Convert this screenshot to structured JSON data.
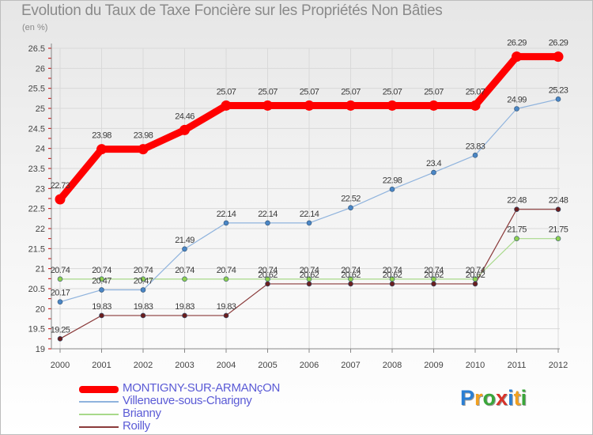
{
  "title": "Evolution du Taux de Taxe Foncière sur les Propriétés Non Bâties",
  "unit_label": "(en %)",
  "logo": {
    "letters": [
      "P",
      "r",
      "o",
      "x",
      "i",
      "t",
      "i"
    ],
    "colors": [
      "#2a7fd4",
      "#f2a01f",
      "#3aa63a",
      "#d8322a",
      "#2a7fd4",
      "#f2a01f",
      "#3aa63a"
    ]
  },
  "chart_data": {
    "type": "line",
    "title": "Evolution du Taux de Taxe Foncière sur les Propriétés Non Bâties",
    "ylabel": "(en %)",
    "xlabel": "",
    "ylim": [
      19,
      26.5
    ],
    "yticks": [
      "19",
      "19.5",
      "20",
      "20.5",
      "21",
      "21.5",
      "22",
      "22.5",
      "23",
      "23.5",
      "24",
      "24.5",
      "25",
      "25.5",
      "26",
      "26.5"
    ],
    "categories": [
      "2000",
      "2001",
      "2002",
      "2003",
      "2004",
      "2005",
      "2006",
      "2007",
      "2008",
      "2009",
      "2010",
      "2011",
      "2012"
    ],
    "grid": true,
    "legend_position": "bottom-left",
    "series": [
      {
        "name": "MONTIGNY-SUR-ARMANçON",
        "color": "#ff0000",
        "values": [
          22.73,
          23.98,
          23.98,
          24.46,
          25.07,
          25.07,
          25.07,
          25.07,
          25.07,
          25.07,
          25.07,
          26.29,
          26.29
        ],
        "labels": [
          "22.73",
          "23.98",
          "23.98",
          "24.46",
          "25.07",
          "25.07",
          "25.07",
          "25.07",
          "25.07",
          "25.07",
          "25.07",
          "26.29",
          "26.29"
        ]
      },
      {
        "name": "Villeneuve-sous-Charigny",
        "color": "#6699cc",
        "values": [
          20.17,
          20.47,
          20.47,
          21.49,
          22.14,
          22.14,
          22.14,
          22.52,
          22.98,
          23.4,
          23.83,
          24.99,
          25.23
        ],
        "labels": [
          "20.17",
          "20.47",
          "20.47",
          "21.49",
          "22.14",
          "22.14",
          "22.14",
          "22.52",
          "22.98",
          "23.4",
          "23.83",
          "24.99",
          "25.23"
        ]
      },
      {
        "name": "Brianny",
        "color": "#99cc66",
        "values": [
          20.74,
          20.74,
          20.74,
          20.74,
          20.74,
          20.74,
          20.74,
          20.74,
          20.74,
          20.74,
          20.74,
          21.75,
          21.75
        ],
        "labels": [
          "20.74",
          "20.74",
          "20.74",
          "20.74",
          "20.74",
          "20.74",
          "20.74",
          "20.74",
          "20.74",
          "20.74",
          "20.74",
          "21.75",
          "21.75"
        ]
      },
      {
        "name": "Roilly",
        "color": "#7a2e2e",
        "values": [
          19.25,
          19.83,
          19.83,
          19.83,
          19.83,
          20.62,
          20.62,
          20.62,
          20.62,
          20.62,
          20.62,
          22.48,
          22.48
        ],
        "labels": [
          "19.25",
          "19.83",
          "19.83",
          "19.83",
          "19.83",
          "20.62",
          "20.62",
          "20.62",
          "20.62",
          "20.62",
          "20.62",
          "22.48",
          "22.48"
        ]
      }
    ]
  }
}
